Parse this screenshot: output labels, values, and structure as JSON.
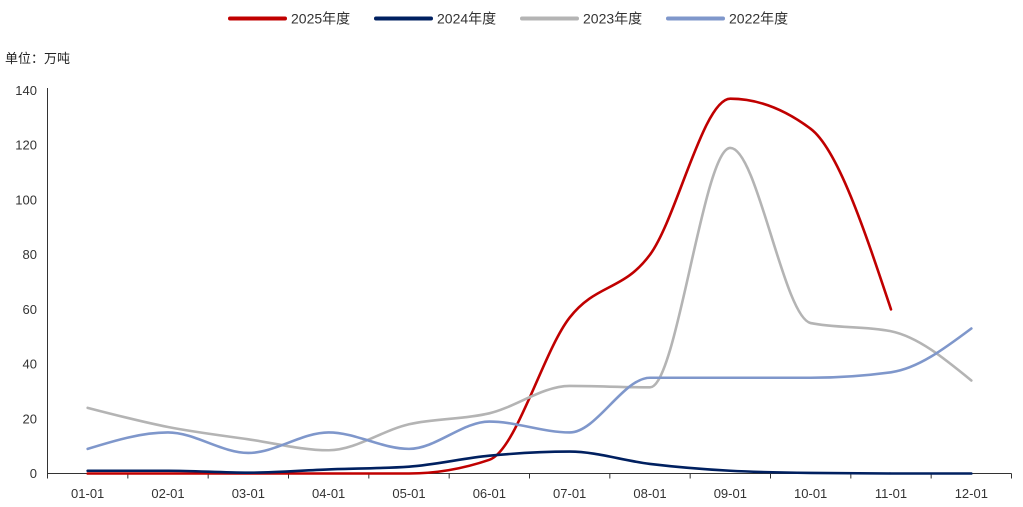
{
  "chart_data": {
    "type": "line",
    "ylabel": "单位：万吨",
    "categories": [
      "01-01",
      "02-01",
      "03-01",
      "04-01",
      "05-01",
      "06-01",
      "07-01",
      "08-01",
      "09-01",
      "10-01",
      "11-01",
      "12-01"
    ],
    "ylim": [
      0,
      140
    ],
    "yticks": [
      0,
      20,
      40,
      60,
      80,
      100,
      120,
      140
    ],
    "smooth": true,
    "grid": false,
    "legend": "top-center",
    "series": [
      {
        "name": "2025年度",
        "color": "#C00000",
        "values": [
          0,
          0,
          0,
          0,
          0,
          5,
          57,
          80,
          137,
          126,
          60,
          null
        ]
      },
      {
        "name": "2024年度",
        "color": "#002060",
        "values": [
          1,
          1,
          0.3,
          1.5,
          2.5,
          6.5,
          8,
          3.5,
          1,
          0.2,
          0,
          0
        ]
      },
      {
        "name": "2023年度",
        "color": "#B4B4B4",
        "values": [
          24,
          17,
          12.5,
          8.5,
          18,
          22,
          32,
          31.5,
          119,
          55,
          52,
          34
        ]
      },
      {
        "name": "2022年度",
        "color": "#7F97CB",
        "values": [
          9,
          15,
          7.5,
          15,
          9,
          19,
          15,
          35,
          35,
          35,
          37,
          53
        ]
      }
    ]
  }
}
